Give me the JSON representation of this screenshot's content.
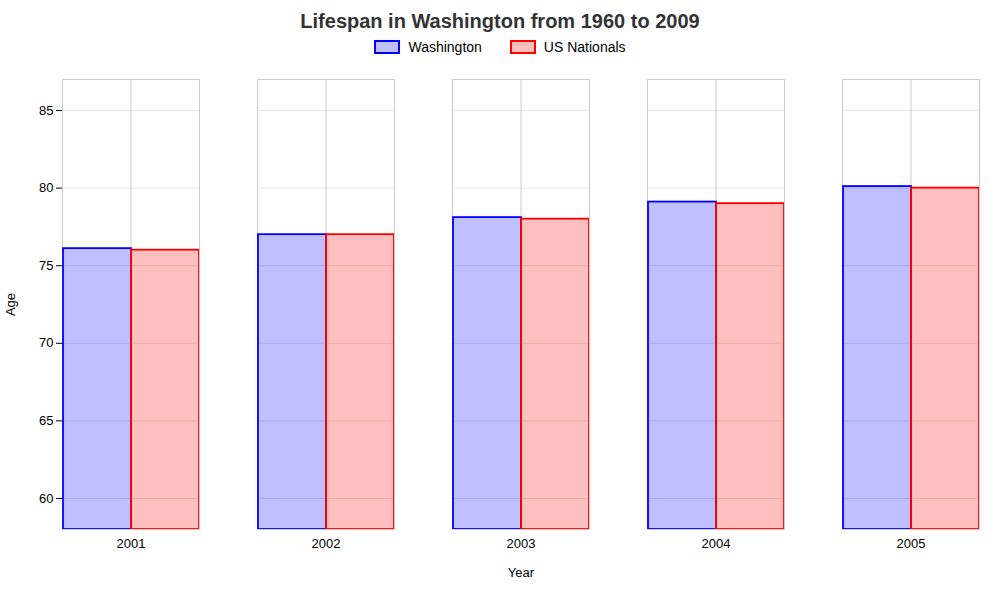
{
  "chart_data": {
    "type": "bar",
    "title": "Lifespan in Washington from 1960 to 2009",
    "xlabel": "Year",
    "ylabel": "Age",
    "categories": [
      "2001",
      "2002",
      "2003",
      "2004",
      "2005"
    ],
    "series": [
      {
        "name": "Washington",
        "color": "#0000ff",
        "values": [
          76.1,
          77.0,
          78.1,
          79.1,
          80.1
        ]
      },
      {
        "name": "US Nationals",
        "color": "#ff0000",
        "values": [
          76.0,
          77.0,
          78.0,
          79.0,
          80.0
        ]
      }
    ],
    "ylim": [
      58,
      87
    ],
    "yticks": [
      60,
      65,
      70,
      75,
      80,
      85
    ],
    "grid": true,
    "legend": "top"
  }
}
